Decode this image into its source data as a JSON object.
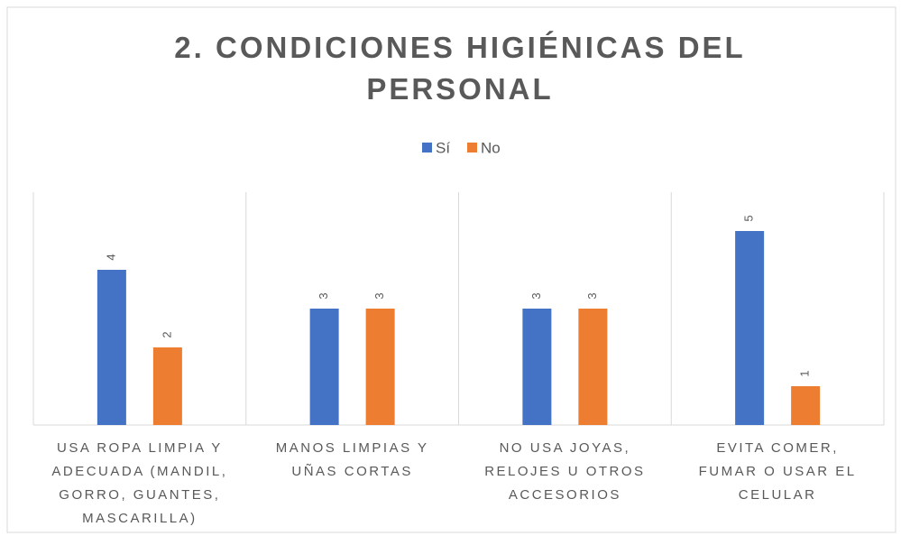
{
  "chart_data": {
    "type": "bar",
    "title": "2. CONDICIONES HIGIÉNICAS DEL PERSONAL",
    "categories": [
      "USA ROPA LIMPIA Y ADECUADA (MANDIL, GORRO, GUANTES, MASCARILLA)",
      "MANOS LIMPIAS Y UÑAS CORTAS",
      "NO USA JOYAS, RELOJES U OTROS ACCESORIOS",
      "EVITA COMER, FUMAR O USAR EL CELULAR"
    ],
    "series": [
      {
        "name": "Sí",
        "color": "#4472c4",
        "values": [
          4,
          3,
          3,
          5
        ]
      },
      {
        "name": "No",
        "color": "#ed7d31",
        "values": [
          2,
          3,
          3,
          1
        ]
      }
    ],
    "ylim": [
      0,
      6
    ]
  }
}
